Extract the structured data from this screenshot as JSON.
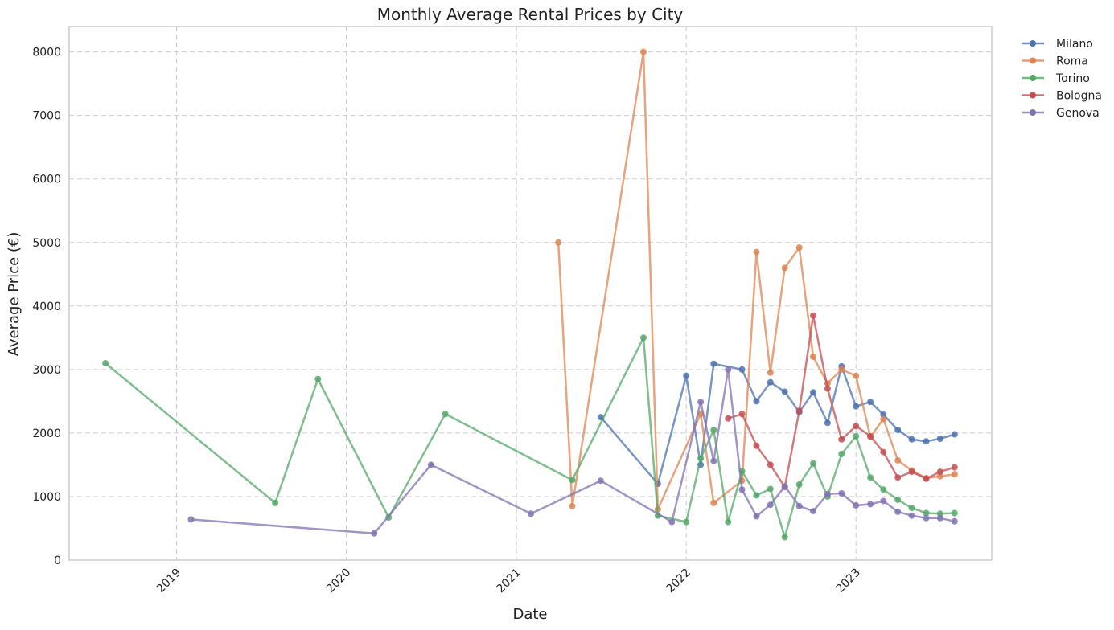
{
  "chart_data": {
    "type": "line",
    "title": "Monthly Average Rental Prices by City",
    "xlabel": "Date",
    "ylabel": "Average Price (€)",
    "x_axis": "date",
    "xlim": [
      "2018-05-15",
      "2023-10-20"
    ],
    "ylim": [
      0,
      8400
    ],
    "yticks": [
      0,
      1000,
      2000,
      3000,
      4000,
      5000,
      6000,
      7000,
      8000
    ],
    "xticks": [
      {
        "date": "2019-01-01",
        "label": "2019"
      },
      {
        "date": "2020-01-01",
        "label": "2020"
      },
      {
        "date": "2021-01-01",
        "label": "2021"
      },
      {
        "date": "2022-01-01",
        "label": "2022"
      },
      {
        "date": "2023-01-01",
        "label": "2023"
      }
    ],
    "grid": true,
    "legend_position": "outside-top-right",
    "series": [
      {
        "name": "Milano",
        "color": "#4C72B0",
        "points": [
          [
            "2021-07-01",
            2250
          ],
          [
            "2021-11-01",
            1200
          ],
          [
            "2022-01-01",
            2900
          ],
          [
            "2022-02-01",
            1500
          ],
          [
            "2022-03-01",
            3090
          ],
          [
            "2022-05-01",
            3000
          ],
          [
            "2022-06-01",
            2500
          ],
          [
            "2022-07-01",
            2800
          ],
          [
            "2022-08-01",
            2650
          ],
          [
            "2022-09-01",
            2330
          ],
          [
            "2022-10-01",
            2640
          ],
          [
            "2022-11-01",
            2160
          ],
          [
            "2022-12-01",
            3050
          ],
          [
            "2023-01-01",
            2420
          ],
          [
            "2023-02-01",
            2490
          ],
          [
            "2023-03-01",
            2290
          ],
          [
            "2023-04-01",
            2050
          ],
          [
            "2023-05-01",
            1900
          ],
          [
            "2023-06-01",
            1870
          ],
          [
            "2023-07-01",
            1910
          ],
          [
            "2023-08-01",
            1980
          ]
        ]
      },
      {
        "name": "Roma",
        "color": "#DD8452",
        "points": [
          [
            "2021-04-01",
            5000
          ],
          [
            "2021-05-01",
            850
          ],
          [
            "2021-10-01",
            8000
          ],
          [
            "2021-11-01",
            800
          ],
          [
            "2022-02-01",
            2300
          ],
          [
            "2022-03-01",
            900
          ],
          [
            "2022-05-01",
            1250
          ],
          [
            "2022-06-01",
            4850
          ],
          [
            "2022-07-01",
            2950
          ],
          [
            "2022-08-01",
            4600
          ],
          [
            "2022-09-01",
            4920
          ],
          [
            "2022-10-01",
            3200
          ],
          [
            "2022-11-01",
            2780
          ],
          [
            "2022-12-01",
            3000
          ],
          [
            "2023-01-01",
            2900
          ],
          [
            "2023-02-01",
            1940
          ],
          [
            "2023-03-01",
            2220
          ],
          [
            "2023-04-01",
            1570
          ],
          [
            "2023-05-01",
            1410
          ],
          [
            "2023-06-01",
            1290
          ],
          [
            "2023-07-01",
            1320
          ],
          [
            "2023-08-01",
            1350
          ]
        ]
      },
      {
        "name": "Torino",
        "color": "#55A868",
        "points": [
          [
            "2018-08-01",
            3100
          ],
          [
            "2019-08-01",
            900
          ],
          [
            "2019-11-01",
            2850
          ],
          [
            "2020-04-01",
            670
          ],
          [
            "2020-08-01",
            2300
          ],
          [
            "2021-05-01",
            1260
          ],
          [
            "2021-10-01",
            3500
          ],
          [
            "2021-11-01",
            700
          ],
          [
            "2022-01-01",
            600
          ],
          [
            "2022-02-01",
            1600
          ],
          [
            "2022-03-01",
            2050
          ],
          [
            "2022-04-01",
            600
          ],
          [
            "2022-05-01",
            1400
          ],
          [
            "2022-06-01",
            1020
          ],
          [
            "2022-07-01",
            1120
          ],
          [
            "2022-08-01",
            360
          ],
          [
            "2022-09-01",
            1190
          ],
          [
            "2022-10-01",
            1520
          ],
          [
            "2022-11-01",
            1000
          ],
          [
            "2022-12-01",
            1670
          ],
          [
            "2023-01-01",
            1950
          ],
          [
            "2023-02-01",
            1300
          ],
          [
            "2023-03-01",
            1110
          ],
          [
            "2023-04-01",
            950
          ],
          [
            "2023-05-01",
            820
          ],
          [
            "2023-06-01",
            740
          ],
          [
            "2023-07-01",
            730
          ],
          [
            "2023-08-01",
            740
          ]
        ]
      },
      {
        "name": "Bologna",
        "color": "#C44E52",
        "points": [
          [
            "2022-04-01",
            2230
          ],
          [
            "2022-05-01",
            2300
          ],
          [
            "2022-06-01",
            1800
          ],
          [
            "2022-07-01",
            1500
          ],
          [
            "2022-08-01",
            1150
          ],
          [
            "2022-09-01",
            2350
          ],
          [
            "2022-10-01",
            3850
          ],
          [
            "2022-11-01",
            2700
          ],
          [
            "2022-12-01",
            1900
          ],
          [
            "2023-01-01",
            2110
          ],
          [
            "2023-02-01",
            1950
          ],
          [
            "2023-03-01",
            1700
          ],
          [
            "2023-04-01",
            1300
          ],
          [
            "2023-05-01",
            1390
          ],
          [
            "2023-06-01",
            1280
          ],
          [
            "2023-07-01",
            1390
          ],
          [
            "2023-08-01",
            1460
          ]
        ]
      },
      {
        "name": "Genova",
        "color": "#8172B3",
        "points": [
          [
            "2019-02-01",
            640
          ],
          [
            "2020-03-01",
            420
          ],
          [
            "2020-07-01",
            1500
          ],
          [
            "2021-02-01",
            730
          ],
          [
            "2021-07-01",
            1250
          ],
          [
            "2021-12-01",
            600
          ],
          [
            "2022-02-01",
            2490
          ],
          [
            "2022-03-01",
            1560
          ],
          [
            "2022-04-01",
            3000
          ],
          [
            "2022-05-01",
            1110
          ],
          [
            "2022-06-01",
            690
          ],
          [
            "2022-07-01",
            870
          ],
          [
            "2022-08-01",
            1160
          ],
          [
            "2022-09-01",
            850
          ],
          [
            "2022-10-01",
            770
          ],
          [
            "2022-11-01",
            1040
          ],
          [
            "2022-12-01",
            1050
          ],
          [
            "2023-01-01",
            860
          ],
          [
            "2023-02-01",
            880
          ],
          [
            "2023-03-01",
            930
          ],
          [
            "2023-04-01",
            760
          ],
          [
            "2023-05-01",
            700
          ],
          [
            "2023-06-01",
            660
          ],
          [
            "2023-07-01",
            660
          ],
          [
            "2023-08-01",
            610
          ]
        ]
      }
    ]
  }
}
